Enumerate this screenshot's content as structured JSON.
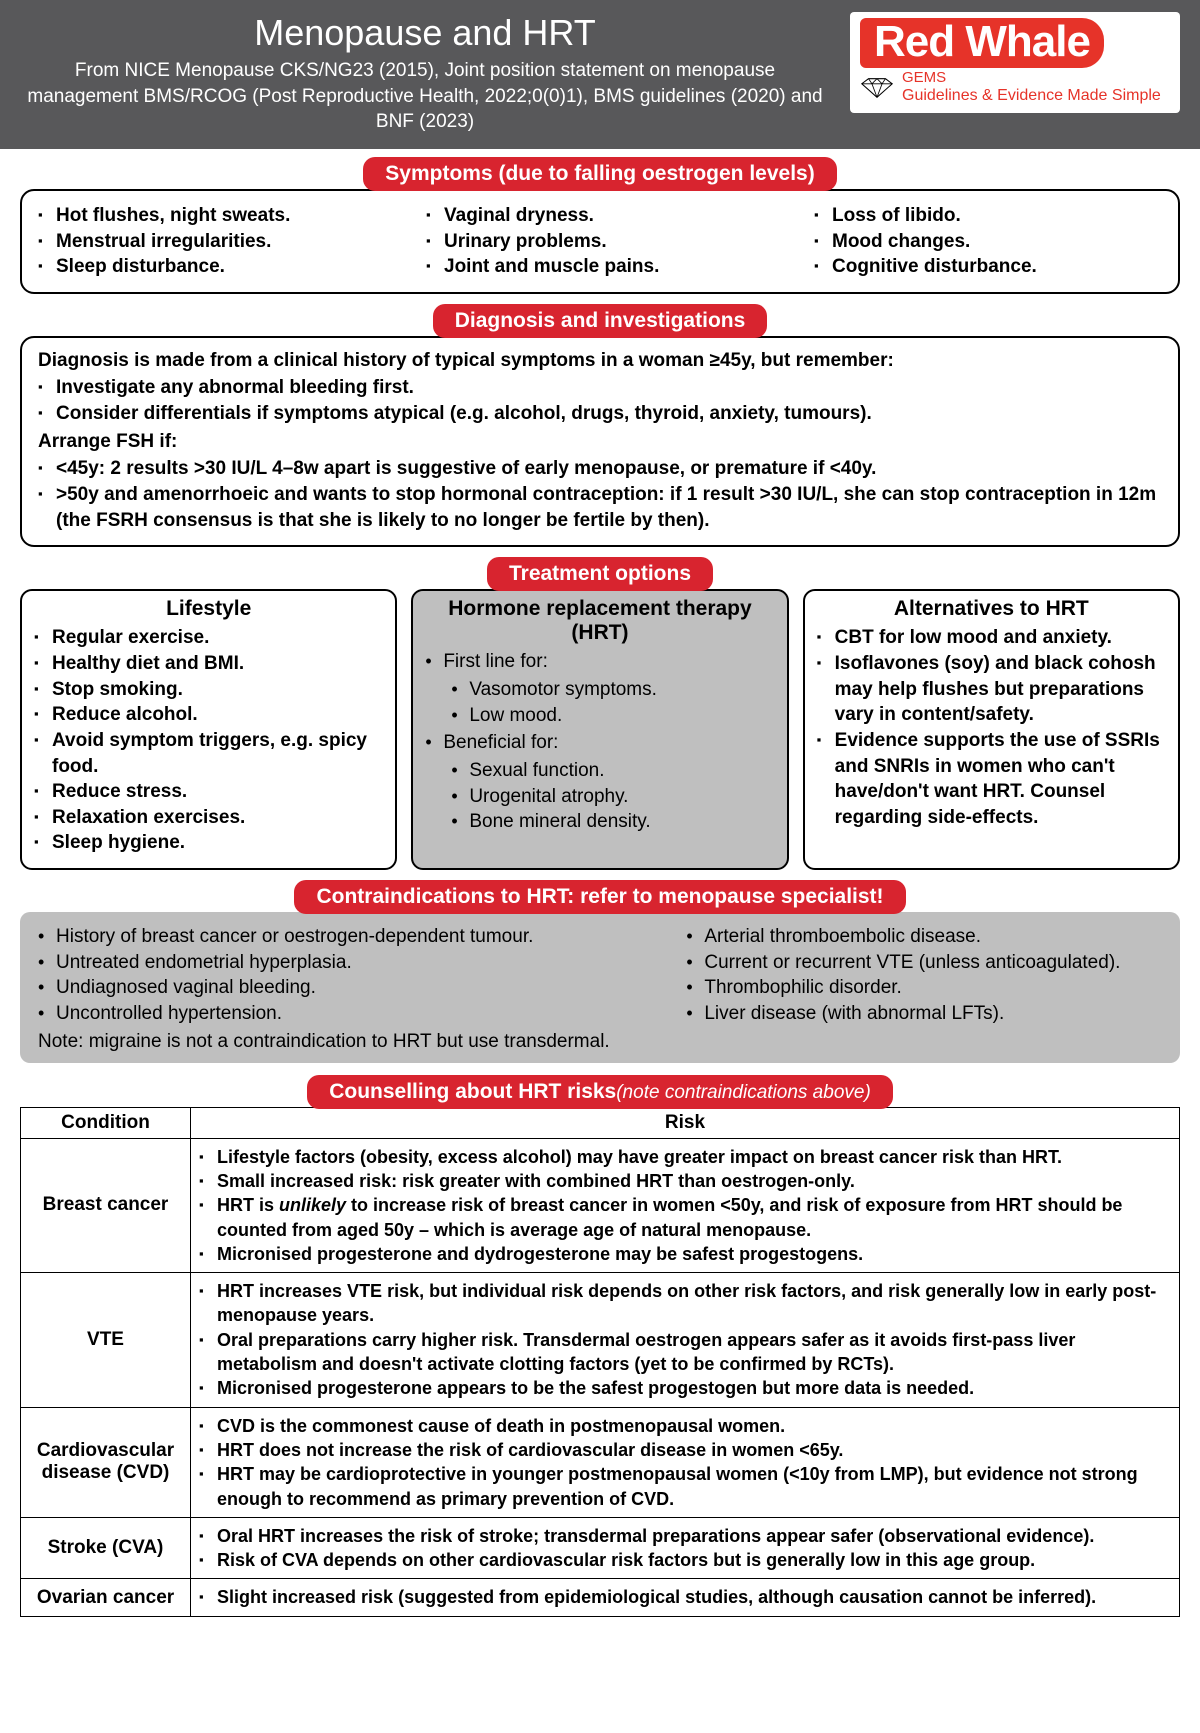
{
  "colors": {
    "header_bg": "#58585a",
    "red": "#d8242f",
    "logo_red": "#e63329",
    "grey_box": "#bfbfbf",
    "text": "#000000"
  },
  "header": {
    "title": "Menopause and HRT",
    "subtitle": "From NICE Menopause CKS/NG23 (2015), Joint position statement on menopause management BMS/RCOG (Post Reproductive Health, 2022;0(0)1), BMS guidelines (2020) and BNF (2023)",
    "logo_main": "Red Whale",
    "logo_gems": "GEMS",
    "logo_tagline": "Guidelines & Evidence Made Simple"
  },
  "symptoms": {
    "heading": "Symptoms (due to falling oestrogen levels)",
    "col1": [
      "Hot flushes, night sweats.",
      "Menstrual irregularities.",
      "Sleep disturbance."
    ],
    "col2": [
      "Vaginal dryness.",
      "Urinary problems.",
      "Joint and muscle pains."
    ],
    "col3": [
      "Loss of libido.",
      "Mood changes.",
      "Cognitive disturbance."
    ]
  },
  "diagnosis": {
    "heading": "Diagnosis and investigations",
    "intro": "Diagnosis is made from a clinical history of typical symptoms in a woman ≥45y, but remember:",
    "points": [
      "Investigate any abnormal bleeding first.",
      "Consider differentials if symptoms atypical (e.g. alcohol, drugs, thyroid, anxiety, tumours)."
    ],
    "fsh_intro": "Arrange FSH if:",
    "fsh_points": [
      "<45y: 2 results >30 IU/L 4–8w apart is suggestive of early menopause, or premature if <40y.",
      ">50y and amenorrhoeic and wants to stop hormonal contraception: if 1 result >30 IU/L, she can stop contraception in 12m (the FSRH consensus is that she is likely to no longer be fertile by then)."
    ]
  },
  "treatment": {
    "heading": "Treatment options",
    "lifestyle": {
      "title": "Lifestyle",
      "items": [
        "Regular exercise.",
        "Healthy diet and BMI.",
        "Stop smoking.",
        "Reduce alcohol.",
        "Avoid symptom triggers, e.g. spicy food.",
        "Reduce stress.",
        "Relaxation exercises.",
        "Sleep hygiene."
      ]
    },
    "hrt": {
      "title": "Hormone replacement therapy (HRT)",
      "firstline_label": "First line for:",
      "firstline": [
        "Vasomotor symptoms.",
        "Low mood."
      ],
      "beneficial_label": "Beneficial for:",
      "beneficial": [
        "Sexual function.",
        "Urogenital atrophy.",
        "Bone mineral density."
      ]
    },
    "alternatives": {
      "title": "Alternatives to HRT",
      "items": [
        "CBT for low mood and anxiety.",
        "Isoflavones (soy) and black cohosh may help flushes but preparations vary in content/safety.",
        "Evidence supports the use of SSRIs and SNRIs in women who can't have/don't want HRT. Counsel regarding side-effects."
      ]
    }
  },
  "contra": {
    "heading": "Contraindications to HRT: refer to menopause specialist!",
    "left": [
      "History of breast cancer or oestrogen-dependent tumour.",
      "Untreated endometrial hyperplasia.",
      "Undiagnosed vaginal bleeding.",
      "Uncontrolled hypertension."
    ],
    "right": [
      "Arterial thromboembolic disease.",
      "Current or recurrent VTE (unless anticoagulated).",
      "Thrombophilic disorder.",
      "Liver disease (with abnormal LFTs)."
    ],
    "note": "Note: migraine is not a contraindication to HRT but use transdermal."
  },
  "counselling": {
    "heading": "Counselling about HRT risks",
    "heading_note": "(note contraindications above)",
    "col_condition": "Condition",
    "col_risk": "Risk",
    "rows": [
      {
        "condition": "Breast cancer",
        "risks": [
          "Lifestyle factors (obesity, excess alcohol) may have greater impact on breast cancer risk than HRT.",
          "Small increased risk: risk greater with combined HRT than oestrogen-only.",
          "HRT is <i>unlikely</i> to increase risk of breast cancer in women <50y, and risk of exposure from HRT should be counted from aged 50y – which is average age of natural menopause.",
          "Micronised progesterone and dydrogesterone may be safest progestogens."
        ]
      },
      {
        "condition": "VTE",
        "risks": [
          "HRT increases VTE risk, but individual risk depends on other risk factors, and risk generally low in early post-menopause years.",
          "Oral preparations carry higher risk. Transdermal oestrogen appears safer as it avoids first-pass liver metabolism and doesn't activate clotting factors (yet to be confirmed by RCTs).",
          "Micronised progesterone appears to be the safest progestogen but more data is needed."
        ]
      },
      {
        "condition": "Cardiovascular disease (CVD)",
        "risks": [
          "CVD is the commonest cause of death in postmenopausal women.",
          "HRT does not increase the risk of cardiovascular disease in women <65y.",
          "HRT may be cardioprotective in younger postmenopausal women (<10y from LMP), but evidence not strong enough to recommend as primary prevention of CVD."
        ]
      },
      {
        "condition": "Stroke (CVA)",
        "risks": [
          "Oral HRT increases the risk of stroke; transdermal preparations appear safer (observational evidence).",
          "Risk of CVA depends on other cardiovascular risk factors but is generally low in this age group."
        ]
      },
      {
        "condition": "Ovarian cancer",
        "risks": [
          "Slight increased risk (suggested from epidemiological studies, although causation cannot be inferred)."
        ]
      }
    ]
  }
}
